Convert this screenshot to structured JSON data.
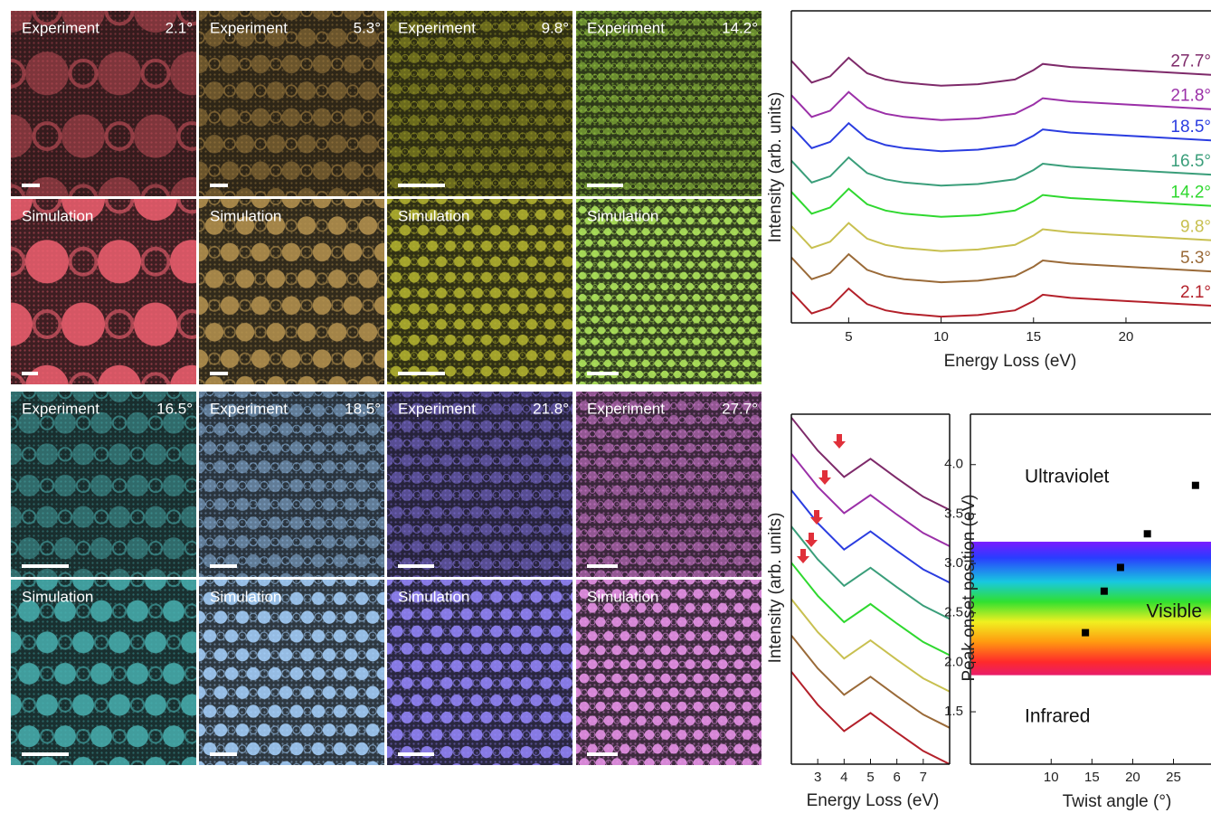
{
  "image_grid": {
    "tiles": [
      {
        "label": "Experiment",
        "angle": "2.1°",
        "color": "#c8505a"
      },
      {
        "label": "Experiment",
        "angle": "5.3°",
        "color": "#a88442"
      },
      {
        "label": "Experiment",
        "angle": "9.8°",
        "color": "#a8a828"
      },
      {
        "label": "Experiment",
        "angle": "14.2°",
        "color": "#a8e048"
      },
      {
        "label": "Simulation",
        "color": "#f06070"
      },
      {
        "label": "Simulation",
        "color": "#b89450"
      },
      {
        "label": "Simulation",
        "color": "#b8b830"
      },
      {
        "label": "Simulation",
        "color": "#b8f060"
      },
      {
        "label": "Experiment",
        "angle": "16.5°",
        "color": "#48a8a8"
      },
      {
        "label": "Experiment",
        "angle": "18.5°",
        "color": "#98c4f0"
      },
      {
        "label": "Experiment",
        "angle": "21.8°",
        "color": "#8878e8"
      },
      {
        "label": "Experiment",
        "angle": "27.7°",
        "color": "#e888e8"
      },
      {
        "label": "Simulation",
        "color": "#48b0b0"
      },
      {
        "label": "Simulation",
        "color": "#a8d4ff"
      },
      {
        "label": "Simulation",
        "color": "#9888ff"
      },
      {
        "label": "Simulation",
        "color": "#f098f0"
      }
    ]
  },
  "chart_data": [
    {
      "type": "line",
      "x_label": "Energy Loss (eV)",
      "y_label": "Intensity (arb. units)",
      "x": [
        1.9,
        3,
        4,
        5,
        6,
        7,
        8,
        10,
        12,
        14,
        15,
        15.5,
        17,
        20,
        24.6
      ],
      "xlim": [
        1.9,
        24.6
      ],
      "xticks": [
        5,
        10,
        15,
        20
      ],
      "ylim": [
        0,
        100
      ],
      "series": [
        {
          "name": "2.1°",
          "color": "#b3202a",
          "values": [
            10,
            3,
            5,
            11,
            6,
            4,
            3,
            2,
            2.5,
            4,
            7,
            9,
            8,
            7,
            5.5
          ]
        },
        {
          "name": "5.3°",
          "color": "#9a6a38",
          "values": [
            21,
            14,
            16,
            22,
            17,
            15,
            14,
            13,
            13.5,
            15,
            18,
            20,
            19,
            18,
            16.5
          ]
        },
        {
          "name": "9.8°",
          "color": "#c8c050",
          "values": [
            31,
            24,
            26,
            32,
            27,
            25,
            24,
            23,
            23.5,
            25,
            28,
            30,
            29,
            28,
            26.5
          ]
        },
        {
          "name": "14.2°",
          "color": "#2fd82f",
          "values": [
            42,
            35,
            37,
            43,
            38,
            36,
            35,
            34,
            34.5,
            36,
            39,
            41,
            40,
            39,
            37.5
          ]
        },
        {
          "name": "16.5°",
          "color": "#3a9e7a",
          "values": [
            52,
            45,
            47,
            53,
            48,
            46,
            45,
            44,
            44.5,
            46,
            49,
            51,
            50,
            49,
            47.5
          ]
        },
        {
          "name": "18.5°",
          "color": "#2b3de0",
          "values": [
            63,
            56,
            58,
            64,
            59,
            57,
            56,
            55,
            55.5,
            57,
            60,
            62,
            61,
            60,
            58.5
          ]
        },
        {
          "name": "21.8°",
          "color": "#9b30a8",
          "values": [
            73,
            66,
            68,
            74,
            69,
            67,
            66,
            65,
            65.5,
            67,
            70,
            72,
            71,
            70,
            68.5
          ]
        },
        {
          "name": "27.7°",
          "color": "#7e2a6a",
          "values": [
            84,
            77,
            79,
            85,
            80,
            78,
            77,
            76,
            76.5,
            78,
            81,
            83,
            82,
            81,
            79.5
          ]
        }
      ]
    },
    {
      "type": "line",
      "x_label": "Energy Loss (eV)",
      "y_label": "Intensity (arb. units)",
      "x": [
        2,
        3,
        4,
        5,
        6,
        7,
        8
      ],
      "xlim": [
        2,
        8
      ],
      "xticks": [
        3,
        4,
        5,
        6,
        7
      ],
      "ylim": [
        0,
        106
      ],
      "series": [
        {
          "color": "#b3202a",
          "values": [
            28,
            18,
            10,
            15.5,
            9.6,
            4,
            0
          ]
        },
        {
          "color": "#9a6a38",
          "values": [
            39,
            29,
            21,
            26.5,
            20.6,
            15,
            11
          ]
        },
        {
          "color": "#c8c050",
          "values": [
            50,
            40,
            32,
            37.5,
            31.6,
            26,
            22
          ]
        },
        {
          "color": "#2fd82f",
          "values": [
            61,
            51,
            43,
            48.5,
            42.6,
            37,
            33
          ]
        },
        {
          "color": "#3a9e7a",
          "values": [
            72,
            62,
            54,
            59.5,
            53.6,
            48,
            44
          ]
        },
        {
          "color": "#2b3de0",
          "values": [
            83,
            73,
            65,
            70.5,
            64.6,
            59,
            55
          ]
        },
        {
          "color": "#9b30a8",
          "values": [
            94,
            84,
            76,
            81.5,
            75.6,
            70,
            66
          ]
        },
        {
          "color": "#7e2a6a",
          "values": [
            105,
            95,
            87,
            92.5,
            86.6,
            81,
            77
          ]
        }
      ]
    },
    {
      "type": "scatter",
      "x_label": "Twist angle (°)",
      "y_label": "Peak onset position (eV)",
      "xlim": [
        0.1,
        29.6
      ],
      "xticks": [
        10,
        15,
        20,
        25
      ],
      "ylim": [
        0.97,
        4.51
      ],
      "yticks": [
        1.5,
        {
          "value": 2,
          "label": "2.0"
        },
        2.5,
        {
          "value": 3,
          "label": "3.0"
        },
        3.5,
        {
          "value": 4,
          "label": "4.0"
        }
      ],
      "regions": [
        {
          "label": "Ultraviolet"
        },
        {
          "label": "Visible",
          "range": [
            1.87,
            3.22
          ]
        },
        {
          "label": "Infrared"
        }
      ],
      "series": [
        {
          "color": "#000000",
          "x": [
            14.2,
            16.5,
            18.5,
            21.8,
            27.7
          ],
          "values": [
            2.3,
            2.72,
            2.96,
            3.3,
            3.79
          ]
        }
      ]
    }
  ]
}
